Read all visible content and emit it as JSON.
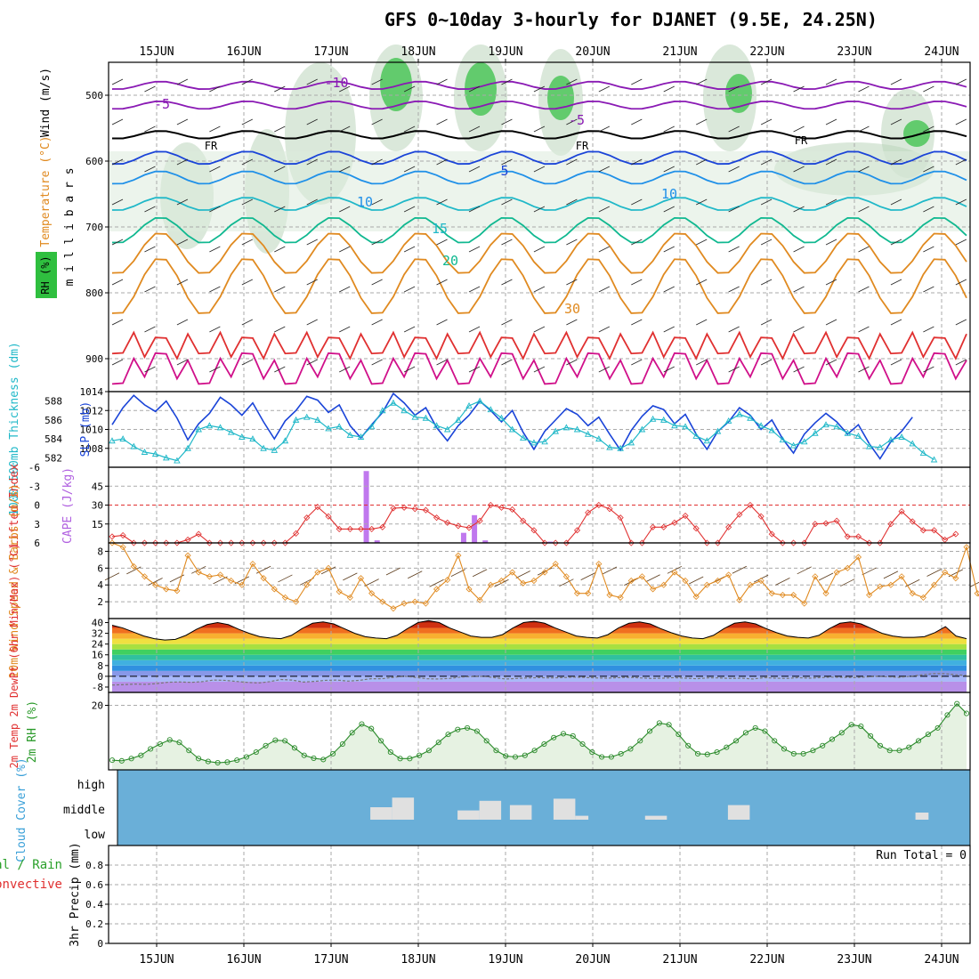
{
  "title": "GFS 0~10day 3-hourly for DJANET (9.5E, 24.25N)",
  "colors": {
    "purple": "#8a1ab4",
    "black": "#000000",
    "blue": "#1a44d8",
    "lightblue": "#2090e8",
    "cyan": "#20b8c8",
    "teal": "#10b890",
    "orange": "#e08a20",
    "red": "#e03030",
    "magenta": "#d0108a",
    "green_rh": "#2fbf3f",
    "cloud_bg": "#6aafd8",
    "cloud_bar": "#e0e0e0"
  },
  "chart_data": [
    {
      "panel": "upper-air",
      "type": "line",
      "ylabel_main": "m i l l i b a r s",
      "ylabel_side_wind": "Wind (m/s)",
      "ylabel_side_temp": "Temperature (°C)",
      "ylabel_side_rh": "RH (%)",
      "yticks": [
        "500",
        "600",
        "700",
        "800",
        "900"
      ],
      "xticks_top": [
        "15JUN",
        "16JUN",
        "17JUN",
        "18JUN",
        "19JUN",
        "20JUN",
        "21JUN",
        "22JUN",
        "23JUN",
        "24JUN"
      ],
      "ylim": [
        450,
        950
      ],
      "isotherm_labels": [
        {
          "text": "-10",
          "color": "purple"
        },
        {
          "text": "-5",
          "color": "purple"
        },
        {
          "text": "-5",
          "color": "purple"
        },
        {
          "text": "FR",
          "color": "black"
        },
        {
          "text": "FR",
          "color": "black"
        },
        {
          "text": "FR",
          "color": "black"
        },
        {
          "text": "5",
          "color": "blue"
        },
        {
          "text": "10",
          "color": "lightblue"
        },
        {
          "text": "10",
          "color": "lightblue"
        },
        {
          "text": "15",
          "color": "cyan"
        },
        {
          "text": "20",
          "color": "teal"
        },
        {
          "text": "30",
          "color": "orange"
        }
      ]
    },
    {
      "panel": "thickness-slp",
      "type": "line",
      "ylabel_left": "1000-500mb Thickness (dm)",
      "ylabel_right": "SLP (mb)",
      "left_ticks": [
        "582",
        "584",
        "586",
        "588"
      ],
      "right_ticks": [
        "1008",
        "1010",
        "1012",
        "1014"
      ],
      "slp_ylim": [
        1006,
        1014
      ],
      "thick_ylim": [
        581,
        589
      ],
      "series": [
        {
          "name": "SLP",
          "color": "blue",
          "values": [
            1010.5,
            1012.3,
            1013.6,
            1012.6,
            1011.9,
            1013.0,
            1011.2,
            1008.9,
            1010.6,
            1011.7,
            1013.4,
            1012.6,
            1011.5,
            1012.8,
            1010.8,
            1009.0,
            1010.9,
            1012.0,
            1013.5,
            1013.1,
            1011.8,
            1012.6,
            1010.4,
            1009.1,
            1010.5,
            1011.8,
            1013.8,
            1012.8,
            1011.5,
            1012.3,
            1010.2,
            1008.8,
            1010.4,
            1011.5,
            1013.0,
            1012.0,
            1010.8,
            1012.0,
            1009.7,
            1007.9,
            1009.8,
            1011.0,
            1012.2,
            1011.6,
            1010.4,
            1011.3,
            1009.5,
            1007.8,
            1009.9,
            1011.4,
            1012.5,
            1012.1,
            1010.6,
            1011.6,
            1009.5,
            1007.9,
            1009.8,
            1010.8,
            1012.3,
            1011.5,
            1010.0,
            1011.0,
            1009.0,
            1007.5,
            1009.5,
            1010.7,
            1011.7,
            1010.8,
            1009.5,
            1010.5,
            1008.5,
            1006.9,
            1008.7,
            1009.8,
            1011.3
          ]
        },
        {
          "name": "Thickness",
          "color": "cyan",
          "values": [
            583.8,
            584.0,
            583.2,
            582.6,
            582.4,
            582.0,
            581.7,
            583.0,
            585.0,
            585.4,
            585.2,
            584.7,
            584.2,
            584.0,
            583.0,
            582.8,
            583.8,
            586.0,
            586.3,
            586.0,
            585.1,
            585.3,
            584.4,
            584.2,
            585.3,
            587.0,
            587.8,
            587.0,
            586.3,
            586.2,
            585.4,
            585.0,
            586.0,
            587.5,
            588.0,
            587.1,
            586.2,
            585.0,
            584.1,
            583.6,
            583.7,
            584.8,
            585.2,
            585.0,
            584.5,
            584.0,
            583.1,
            583.0,
            583.6,
            585.0,
            586.1,
            586.0,
            585.4,
            585.3,
            584.3,
            583.8,
            584.8,
            585.9,
            586.6,
            586.2,
            585.4,
            584.9,
            583.9,
            583.3,
            583.7,
            584.6,
            585.5,
            585.3,
            584.6,
            584.3,
            583.2,
            583.1,
            583.9,
            584.2,
            583.5,
            582.5,
            581.8
          ]
        }
      ]
    },
    {
      "panel": "li-cape",
      "type": "bar",
      "ylabel_left": "Lifted Index",
      "ylabel_right": "CAPE (J/kg)",
      "li_ticks": [
        "-6",
        "-3",
        "0",
        "3",
        "6"
      ],
      "cape_ticks": [
        "15",
        "30",
        "45"
      ],
      "cape_ylim": [
        0,
        60
      ],
      "li_ylim": [
        6,
        -6
      ],
      "series": [
        {
          "name": "Lifted Index",
          "color": "red",
          "values": [
            5.0,
            4.8,
            6.5,
            6.5,
            6.5,
            6.5,
            6.5,
            5.5,
            4.6,
            6.5,
            6.5,
            6.5,
            6.5,
            6.5,
            6.5,
            6.5,
            6.5,
            4.5,
            2.0,
            0.3,
            1.8,
            3.8,
            3.8,
            3.8,
            3.8,
            3.5,
            0.5,
            0.4,
            0.6,
            0.8,
            2.0,
            2.8,
            3.3,
            3.6,
            2.5,
            0.0,
            0.4,
            0.7,
            2.5,
            4.0,
            6.5,
            6.5,
            6.5,
            4.0,
            1.2,
            0.0,
            0.6,
            2.0,
            6.5,
            6.5,
            3.5,
            3.5,
            2.8,
            1.7,
            3.7,
            6.5,
            6.5,
            3.5,
            1.5,
            0.0,
            1.8,
            4.6,
            6.5,
            6.5,
            6.5,
            3.0,
            2.9,
            2.5,
            5.0,
            5.0,
            6.5,
            6.5,
            3.0,
            1.0,
            2.6,
            4.0,
            4.0,
            5.5,
            4.6
          ]
        },
        {
          "name": "CAPE",
          "color": "violet",
          "bars": [
            {
              "i": 23,
              "value": 57
            },
            {
              "i": 24,
              "value": 2
            },
            {
              "i": 32,
              "value": 8
            },
            {
              "i": 33,
              "value": 22
            },
            {
              "i": 34,
              "value": 2
            },
            {
              "i": 40,
              "value": 1
            }
          ]
        }
      ]
    },
    {
      "panel": "wind",
      "type": "line",
      "ylabel": "10m Wind Speed & Barbs (m/s)",
      "ticks": [
        "2",
        "4",
        "6",
        "8"
      ],
      "ylim": [
        0,
        9
      ],
      "series": [
        {
          "name": "10m Wind Speed",
          "color": "orange",
          "values": [
            9.0,
            8.5,
            6.2,
            5.0,
            4.0,
            3.5,
            3.3,
            7.5,
            5.5,
            5.0,
            5.2,
            4.5,
            4.0,
            6.5,
            4.8,
            3.5,
            2.5,
            2.0,
            4.0,
            5.5,
            6.0,
            3.2,
            2.5,
            4.8,
            3.0,
            2.0,
            1.2,
            1.8,
            2.0,
            1.8,
            3.5,
            4.6,
            7.5,
            3.5,
            2.2,
            4.0,
            4.5,
            5.5,
            4.2,
            4.5,
            5.5,
            6.5,
            5.0,
            3.0,
            3.0,
            6.5,
            2.8,
            2.5,
            4.5,
            5.0,
            3.5,
            4.0,
            5.5,
            4.5,
            2.6,
            4.0,
            4.5,
            5.2,
            2.2,
            4.0,
            4.5,
            3.0,
            2.8,
            2.8,
            1.8,
            5.0,
            3.0,
            5.5,
            6.0,
            7.3,
            2.8,
            3.8,
            4.0,
            5.0,
            3.0,
            2.5,
            4.0,
            5.5,
            4.8,
            8.5,
            3.0,
            1.0
          ]
        }
      ]
    },
    {
      "panel": "temp",
      "type": "area",
      "ylabel": "2m Temp 2m DewPt (6hr Min/Max) (°C)",
      "ticks": [
        "40",
        "32",
        "24",
        "16",
        "8",
        "0",
        "-8"
      ],
      "ylim": [
        -12,
        43
      ],
      "series": [
        {
          "name": "2m Temp",
          "color": "black",
          "values": [
            38,
            36,
            33,
            30,
            28,
            27,
            27.5,
            30.5,
            35,
            38.5,
            40,
            38.5,
            35,
            32,
            29.5,
            28.5,
            28,
            30.5,
            35.5,
            39.5,
            40.5,
            39,
            35.5,
            32,
            29.5,
            28.5,
            28,
            30.5,
            35.5,
            40,
            41.5,
            40,
            36,
            33,
            30,
            29,
            29,
            31,
            36,
            40,
            41,
            39.5,
            36,
            33,
            30,
            29,
            28.5,
            31,
            36,
            39.5,
            40.5,
            39,
            35.5,
            32.5,
            30,
            28.5,
            28,
            30.5,
            35.5,
            39.5,
            40.5,
            39,
            35.5,
            32.5,
            30,
            29,
            28.5,
            30.5,
            35.5,
            39.5,
            40.5,
            39,
            35.5,
            32,
            30,
            29,
            29,
            29.5,
            32.5,
            37,
            30,
            28
          ]
        },
        {
          "name": "2m DewPt",
          "color": "gray",
          "values": [
            -6.5,
            -6.2,
            -5.8,
            -6.0,
            -5.4,
            -4.4,
            -4.2,
            -4.5,
            -4.0,
            -2.8,
            -3.0,
            -3.8,
            -4.5,
            -5.0,
            -4.0,
            -2.4,
            -2.8,
            -4.3,
            -3.8,
            -3.0,
            -2.8,
            -3.6,
            -3.0,
            -1.8,
            -1.8,
            -0.8,
            0.0,
            -0.8,
            -1.8,
            -2.0,
            -1.6,
            -0.6,
            -0.2,
            0.0,
            -1.0,
            -2.0,
            -1.6,
            -1.2,
            -1.0,
            -1.2,
            -1.0,
            -0.6,
            -0.8,
            -1.2,
            -1.4,
            -1.0,
            -0.8,
            -1.2,
            -1.6,
            -1.4,
            -1.0,
            -1.4,
            -1.8,
            -1.2,
            -1.2,
            -1.6,
            -1.4,
            -2.0,
            -1.0,
            -1.4,
            -1.6,
            -1.0,
            -1.4,
            -1.0,
            -0.6,
            -0.8,
            -1.0,
            -0.6,
            0.0,
            -0.4,
            -0.8,
            0.0,
            1.0,
            2.0,
            2.0,
            1.2,
            0.6
          ]
        }
      ]
    },
    {
      "panel": "rh",
      "type": "area",
      "ylabel": "2m RH (%)",
      "ticks": [
        "20"
      ],
      "ylim": [
        0,
        24
      ],
      "series": [
        {
          "name": "2m RH",
          "color": "green",
          "values": [
            3.0,
            2.8,
            3.5,
            4.5,
            6.5,
            8.0,
            9.3,
            8.5,
            6.0,
            3.5,
            2.6,
            2.2,
            2.4,
            3.0,
            4.0,
            5.5,
            7.5,
            9.2,
            9.0,
            6.8,
            4.5,
            3.6,
            3.2,
            5.0,
            8.0,
            11.5,
            14.2,
            12.8,
            9.0,
            5.5,
            3.5,
            3.5,
            4.5,
            6.0,
            8.5,
            11.0,
            12.5,
            13.0,
            12.0,
            9.0,
            6.0,
            4.3,
            4.0,
            4.5,
            6.0,
            8.0,
            10.0,
            11.2,
            10.5,
            8.0,
            5.5,
            4.0,
            4.0,
            5.0,
            6.5,
            9.0,
            12.0,
            14.5,
            14.0,
            11.0,
            7.5,
            5.0,
            4.8,
            5.5,
            7.0,
            9.0,
            11.5,
            13.0,
            12.0,
            9.0,
            6.5,
            5.0,
            5.0,
            6.0,
            7.5,
            9.5,
            11.5,
            14.0,
            13.5,
            10.5,
            7.5,
            6.0,
            6.0,
            7.0,
            9.0,
            11.0,
            13.0,
            17.0,
            20.5,
            17.5
          ]
        }
      ]
    },
    {
      "panel": "cloud",
      "type": "bar",
      "ylabel": "Cloud Cover (%)",
      "levels": [
        "high",
        "middle",
        "low"
      ],
      "bars": [
        {
          "level": "middle",
          "from": 17.45,
          "to": 17.7,
          "cover": 0.5
        },
        {
          "level": "middle",
          "from": 17.7,
          "to": 17.95,
          "cover": 0.95
        },
        {
          "level": "middle",
          "from": 18.45,
          "to": 18.7,
          "cover": 0.35
        },
        {
          "level": "middle",
          "from": 18.7,
          "to": 18.95,
          "cover": 0.8
        },
        {
          "level": "middle",
          "from": 19.05,
          "to": 19.3,
          "cover": 0.6
        },
        {
          "level": "middle",
          "from": 19.55,
          "to": 19.8,
          "cover": 0.9
        },
        {
          "level": "middle",
          "from": 19.8,
          "to": 19.95,
          "cover": 0.1
        },
        {
          "level": "middle",
          "from": 20.6,
          "to": 20.85,
          "cover": 0.1
        },
        {
          "level": "middle",
          "from": 21.55,
          "to": 21.8,
          "cover": 0.6
        },
        {
          "level": "middle",
          "from": 23.7,
          "to": 23.85,
          "cover": 0.25
        }
      ]
    },
    {
      "panel": "precip",
      "type": "bar",
      "ylabel": "3hr Precip (mm)",
      "legend_total": "Total / Rain",
      "legend_convective": "Convective",
      "run_total": "Run Total = 0",
      "ticks": [
        "0",
        "0.2",
        "0.4",
        "0.6",
        "0.8"
      ],
      "ylim": [
        0,
        1
      ],
      "xticks_bottom": [
        "15JUN",
        "16JUN",
        "17JUN",
        "18JUN",
        "19JUN",
        "20JUN",
        "21JUN",
        "22JUN",
        "23JUN",
        "24JUN"
      ],
      "values": []
    }
  ]
}
